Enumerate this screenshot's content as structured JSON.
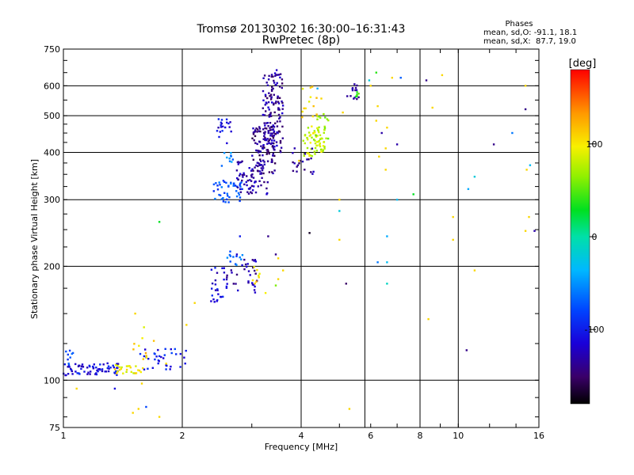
{
  "chart_data": {
    "type": "scatter",
    "title": "Tromsø 20130302 16:30:00–16:31:43",
    "subtitle": "RwPretec (8p)",
    "xlabel": "Frequency [MHz]",
    "ylabel": "Stationary phase Virtual Height [km]",
    "x_scale": "log",
    "y_scale": "log",
    "xlim": [
      1,
      16
    ],
    "ylim": [
      75,
      750
    ],
    "x_ticks": [
      1,
      2,
      4,
      6,
      8,
      10,
      16
    ],
    "y_ticks": [
      75,
      100,
      200,
      300,
      400,
      500,
      600,
      750
    ],
    "x_grid": [
      1,
      2,
      4,
      5.8,
      8,
      10
    ],
    "y_grid": [
      100,
      200,
      300,
      400,
      500,
      600
    ],
    "grid": true,
    "phase_stats": {
      "heading": "Phases",
      "line_o": "mean, sd,O: -91.1, 18.1",
      "line_x": "mean, sd,X:  87.7, 19.0"
    },
    "colorbar": {
      "label": "[deg]",
      "range": [
        -180,
        180
      ],
      "ticks": [
        100,
        0,
        -100
      ],
      "tick_labels": [
        "100",
        "0",
        "-100"
      ],
      "placement": "right"
    },
    "clusters": [
      {
        "x": [
          1.0,
          1.4
        ],
        "y": [
          103,
          111
        ],
        "phase": -110,
        "n": 70
      },
      {
        "x": [
          1.35,
          1.6
        ],
        "y": [
          104,
          110
        ],
        "phase": 100,
        "n": 25
      },
      {
        "x": [
          1.55,
          2.05
        ],
        "y": [
          106,
          122
        ],
        "phase": -100,
        "n": 35
      },
      {
        "x": [
          1.5,
          1.85
        ],
        "y": [
          110,
          130
        ],
        "phase": 110,
        "n": 10
      },
      {
        "x": [
          1.0,
          1.06
        ],
        "y": [
          110,
          120
        ],
        "phase": -80,
        "n": 8
      },
      {
        "x": [
          2.35,
          2.6
        ],
        "y": [
          160,
          200
        ],
        "phase": -110,
        "n": 25
      },
      {
        "x": [
          2.55,
          3.1
        ],
        "y": [
          170,
          210
        ],
        "phase": -130,
        "n": 35
      },
      {
        "x": [
          2.6,
          2.85
        ],
        "y": [
          200,
          225
        ],
        "phase": -70,
        "n": 12
      },
      {
        "x": [
          3.0,
          3.25
        ],
        "y": [
          180,
          200
        ],
        "phase": 110,
        "n": 8
      },
      {
        "x": [
          2.4,
          2.85
        ],
        "y": [
          295,
          340
        ],
        "phase": -75,
        "n": 45
      },
      {
        "x": [
          2.75,
          3.3
        ],
        "y": [
          310,
          380
        ],
        "phase": -130,
        "n": 70
      },
      {
        "x": [
          3.0,
          3.45
        ],
        "y": [
          350,
          470
        ],
        "phase": -140,
        "n": 90
      },
      {
        "x": [
          3.2,
          3.6
        ],
        "y": [
          400,
          660
        ],
        "phase": -135,
        "n": 140
      },
      {
        "x": [
          2.45,
          2.72
        ],
        "y": [
          420,
          490
        ],
        "phase": -110,
        "n": 20
      },
      {
        "x": [
          2.5,
          2.7
        ],
        "y": [
          360,
          400
        ],
        "phase": -60,
        "n": 10
      },
      {
        "x": [
          4.05,
          4.6
        ],
        "y": [
          390,
          470
        ],
        "phase": 85,
        "n": 60
      },
      {
        "x": [
          4.3,
          4.75
        ],
        "y": [
          430,
          510
        ],
        "phase": 70,
        "n": 20
      },
      {
        "x": [
          3.8,
          4.3
        ],
        "y": [
          350,
          420
        ],
        "phase": -140,
        "n": 20
      },
      {
        "x": [
          4.0,
          4.4
        ],
        "y": [
          480,
          600
        ],
        "phase": 110,
        "n": 12
      },
      {
        "x": [
          5.2,
          5.6
        ],
        "y": [
          550,
          610
        ],
        "phase": -140,
        "n": 14
      },
      {
        "x": [
          5.4,
          5.75
        ],
        "y": [
          555,
          580
        ],
        "phase": 40,
        "n": 6
      }
    ],
    "scatter_points": [
      {
        "x": 1.75,
        "y": 262,
        "phase": 30
      },
      {
        "x": 1.5,
        "y": 82,
        "phase": 110
      },
      {
        "x": 1.55,
        "y": 84,
        "phase": 110
      },
      {
        "x": 1.62,
        "y": 85,
        "phase": -80
      },
      {
        "x": 1.75,
        "y": 80,
        "phase": 110
      },
      {
        "x": 1.08,
        "y": 95,
        "phase": 110
      },
      {
        "x": 1.35,
        "y": 95,
        "phase": -110
      },
      {
        "x": 1.58,
        "y": 98,
        "phase": 110
      },
      {
        "x": 1.52,
        "y": 150,
        "phase": 110
      },
      {
        "x": 1.6,
        "y": 138,
        "phase": 90
      },
      {
        "x": 2.05,
        "y": 140,
        "phase": 110
      },
      {
        "x": 2.15,
        "y": 160,
        "phase": 110
      },
      {
        "x": 2.8,
        "y": 240,
        "phase": -100
      },
      {
        "x": 2.75,
        "y": 215,
        "phase": -120
      },
      {
        "x": 3.3,
        "y": 240,
        "phase": -140
      },
      {
        "x": 3.45,
        "y": 215,
        "phase": -140
      },
      {
        "x": 3.5,
        "y": 210,
        "phase": 110
      },
      {
        "x": 3.6,
        "y": 195,
        "phase": 110
      },
      {
        "x": 3.25,
        "y": 170,
        "phase": 100
      },
      {
        "x": 3.45,
        "y": 178,
        "phase": 60
      },
      {
        "x": 3.5,
        "y": 185,
        "phase": 110
      },
      {
        "x": 4.2,
        "y": 245,
        "phase": -170
      },
      {
        "x": 3.95,
        "y": 380,
        "phase": 110
      },
      {
        "x": 4.3,
        "y": 530,
        "phase": 120
      },
      {
        "x": 4.4,
        "y": 590,
        "phase": -40
      },
      {
        "x": 4.5,
        "y": 555,
        "phase": 110
      },
      {
        "x": 5.0,
        "y": 300,
        "phase": 110
      },
      {
        "x": 5.0,
        "y": 280,
        "phase": -20
      },
      {
        "x": 5.0,
        "y": 235,
        "phase": 110
      },
      {
        "x": 5.2,
        "y": 180,
        "phase": -150
      },
      {
        "x": 5.3,
        "y": 84,
        "phase": 110
      },
      {
        "x": 5.1,
        "y": 510,
        "phase": 110
      },
      {
        "x": 5.95,
        "y": 620,
        "phase": -20
      },
      {
        "x": 6.0,
        "y": 600,
        "phase": 110
      },
      {
        "x": 6.2,
        "y": 650,
        "phase": 40
      },
      {
        "x": 6.2,
        "y": 485,
        "phase": 110
      },
      {
        "x": 6.3,
        "y": 390,
        "phase": 110
      },
      {
        "x": 6.4,
        "y": 450,
        "phase": -130
      },
      {
        "x": 6.55,
        "y": 410,
        "phase": 110
      },
      {
        "x": 6.55,
        "y": 360,
        "phase": 110
      },
      {
        "x": 6.25,
        "y": 530,
        "phase": 110
      },
      {
        "x": 6.25,
        "y": 205,
        "phase": -60
      },
      {
        "x": 6.6,
        "y": 205,
        "phase": -30
      },
      {
        "x": 6.6,
        "y": 240,
        "phase": -40
      },
      {
        "x": 6.6,
        "y": 180,
        "phase": -10
      },
      {
        "x": 6.6,
        "y": 465,
        "phase": 110
      },
      {
        "x": 6.8,
        "y": 630,
        "phase": 110
      },
      {
        "x": 7.0,
        "y": 420,
        "phase": -130
      },
      {
        "x": 7.0,
        "y": 300,
        "phase": -30
      },
      {
        "x": 7.15,
        "y": 630,
        "phase": -70
      },
      {
        "x": 7.7,
        "y": 310,
        "phase": 30
      },
      {
        "x": 8.3,
        "y": 620,
        "phase": -140
      },
      {
        "x": 8.4,
        "y": 145,
        "phase": 110
      },
      {
        "x": 8.6,
        "y": 525,
        "phase": 110
      },
      {
        "x": 9.1,
        "y": 640,
        "phase": 110
      },
      {
        "x": 9.7,
        "y": 270,
        "phase": 110
      },
      {
        "x": 9.7,
        "y": 235,
        "phase": 110
      },
      {
        "x": 10.5,
        "y": 120,
        "phase": -140
      },
      {
        "x": 10.6,
        "y": 320,
        "phase": -40
      },
      {
        "x": 11.0,
        "y": 345,
        "phase": -20
      },
      {
        "x": 11.0,
        "y": 195,
        "phase": 110
      },
      {
        "x": 12.3,
        "y": 420,
        "phase": -140
      },
      {
        "x": 13.7,
        "y": 450,
        "phase": -60
      },
      {
        "x": 14.8,
        "y": 600,
        "phase": 110
      },
      {
        "x": 14.8,
        "y": 520,
        "phase": -140
      },
      {
        "x": 14.9,
        "y": 360,
        "phase": 110
      },
      {
        "x": 15.2,
        "y": 370,
        "phase": -30
      },
      {
        "x": 15.1,
        "y": 270,
        "phase": 110
      },
      {
        "x": 14.8,
        "y": 248,
        "phase": 110
      },
      {
        "x": 15.6,
        "y": 248,
        "phase": -130
      }
    ]
  }
}
